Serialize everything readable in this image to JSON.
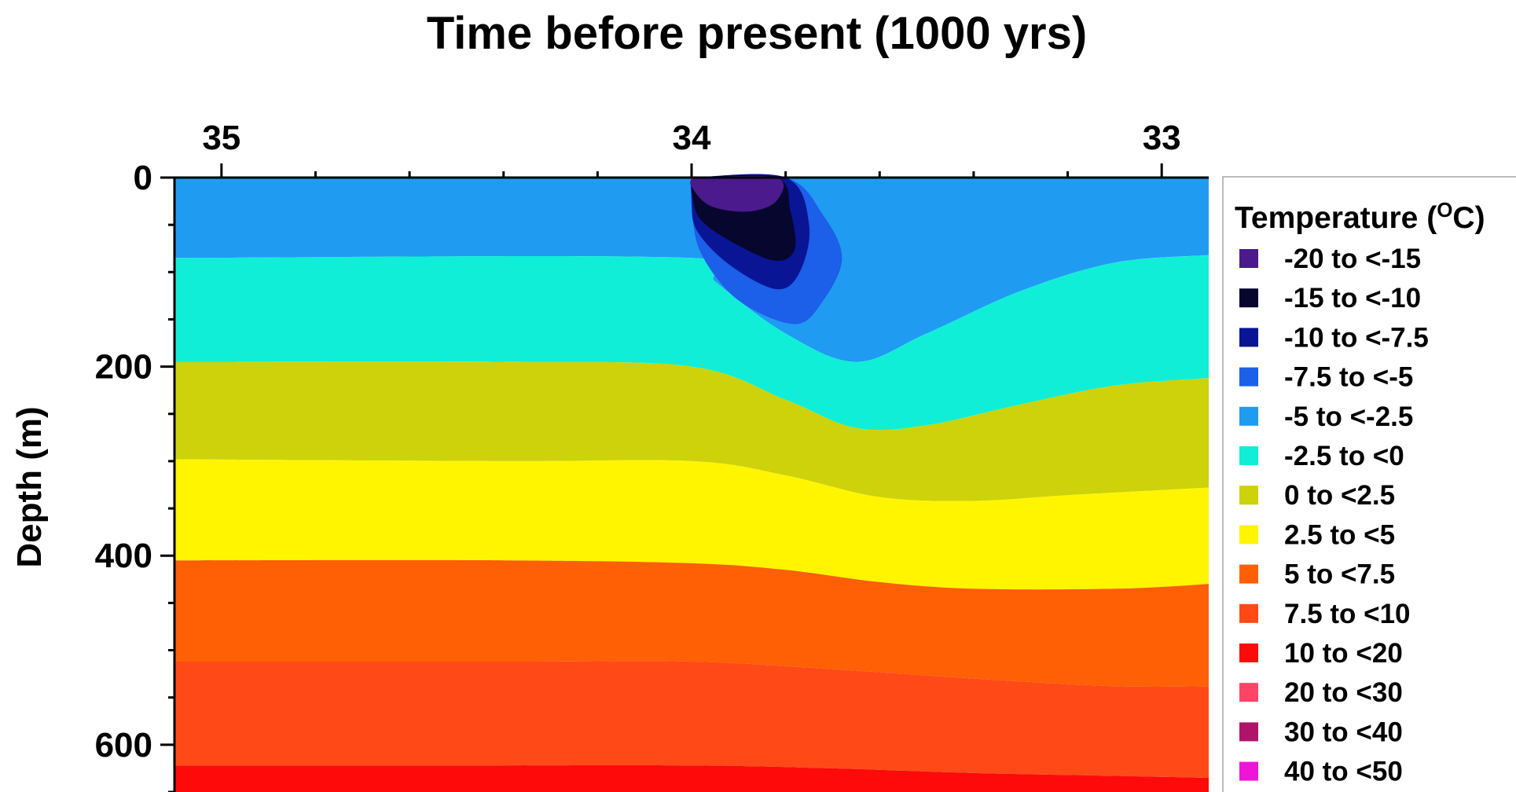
{
  "chart_data": {
    "type": "heatmap",
    "title": "Time before present (1000 yrs)",
    "xlabel": "",
    "ylabel": "Depth (m)",
    "x_ticks": [
      35,
      34,
      33
    ],
    "y_ticks": [
      0,
      200,
      400,
      600
    ],
    "xlim": [
      35.1,
      32.9
    ],
    "ylim": [
      0,
      650
    ],
    "x_axis_position": "top",
    "grid": false,
    "legend": {
      "title": "Temperature (",
      "title_sup": "O",
      "title_end": "C)",
      "placement": "right",
      "items": [
        {
          "label": "-20 to <-15",
          "color": "#4b1a8c"
        },
        {
          "label": "-15 to <-10",
          "color": "#06062e"
        },
        {
          "label": "-10 to <-7.5",
          "color": "#0a1596"
        },
        {
          "label": "-7.5 to <-5",
          "color": "#1c5fe8"
        },
        {
          "label": "-5 to <-2.5",
          "color": "#1f9bf2"
        },
        {
          "label": "-2.5 to <0",
          "color": "#10eed7"
        },
        {
          "label": "0 to <2.5",
          "color": "#cdd20a"
        },
        {
          "label": "2.5 to <5",
          "color": "#fff500"
        },
        {
          "label": "5 to <7.5",
          "color": "#ff5f05"
        },
        {
          "label": "7.5 to <10",
          "color": "#ff4a18"
        },
        {
          "label": "10 to <20",
          "color": "#ff0a0a"
        },
        {
          "label": "20 to <30",
          "color": "#ff4466"
        },
        {
          "label": "30 to <40",
          "color": "#b01468"
        },
        {
          "label": "40 to <50",
          "color": "#f014d8"
        }
      ]
    },
    "layers": [
      {
        "range": "-5 to <-2.5",
        "upper": [
          [
            35.1,
            0
          ],
          [
            32.9,
            0
          ]
        ],
        "lower": [
          [
            35.1,
            85
          ],
          [
            34.0,
            85
          ],
          [
            33.95,
            110
          ],
          [
            33.8,
            165
          ],
          [
            33.65,
            195
          ],
          [
            33.5,
            165
          ],
          [
            33.3,
            120
          ],
          [
            33.1,
            90
          ],
          [
            32.9,
            82
          ]
        ]
      },
      {
        "range": "-2.5 to <0",
        "upper": [
          [
            35.1,
            85
          ],
          [
            34.0,
            85
          ],
          [
            33.95,
            110
          ],
          [
            33.8,
            165
          ],
          [
            33.65,
            195
          ],
          [
            33.5,
            165
          ],
          [
            33.3,
            120
          ],
          [
            33.1,
            90
          ],
          [
            32.9,
            82
          ]
        ],
        "lower": [
          [
            35.1,
            195
          ],
          [
            34.4,
            195
          ],
          [
            34.0,
            200
          ],
          [
            33.8,
            235
          ],
          [
            33.65,
            265
          ],
          [
            33.5,
            262
          ],
          [
            33.3,
            240
          ],
          [
            33.1,
            220
          ],
          [
            32.9,
            212
          ]
        ]
      },
      {
        "range": "0 to <2.5",
        "upper": [
          [
            35.1,
            195
          ],
          [
            34.4,
            195
          ],
          [
            34.0,
            200
          ],
          [
            33.8,
            235
          ],
          [
            33.65,
            265
          ],
          [
            33.5,
            262
          ],
          [
            33.3,
            240
          ],
          [
            33.1,
            220
          ],
          [
            32.9,
            212
          ]
        ],
        "lower": [
          [
            35.1,
            298
          ],
          [
            34.4,
            300
          ],
          [
            34.0,
            300
          ],
          [
            33.8,
            315
          ],
          [
            33.6,
            338
          ],
          [
            33.4,
            342
          ],
          [
            33.2,
            336
          ],
          [
            32.9,
            328
          ]
        ]
      },
      {
        "range": "2.5 to <5",
        "upper": [
          [
            35.1,
            298
          ],
          [
            34.4,
            300
          ],
          [
            34.0,
            300
          ],
          [
            33.8,
            315
          ],
          [
            33.6,
            338
          ],
          [
            33.4,
            342
          ],
          [
            33.2,
            336
          ],
          [
            32.9,
            328
          ]
        ],
        "lower": [
          [
            35.1,
            405
          ],
          [
            34.4,
            405
          ],
          [
            34.0,
            408
          ],
          [
            33.8,
            415
          ],
          [
            33.6,
            428
          ],
          [
            33.4,
            435
          ],
          [
            33.1,
            435
          ],
          [
            32.9,
            430
          ]
        ]
      },
      {
        "range": "5 to <7.5",
        "upper": [
          [
            35.1,
            405
          ],
          [
            34.4,
            405
          ],
          [
            34.0,
            408
          ],
          [
            33.8,
            415
          ],
          [
            33.6,
            428
          ],
          [
            33.4,
            435
          ],
          [
            33.1,
            435
          ],
          [
            32.9,
            430
          ]
        ],
        "lower": [
          [
            35.1,
            512
          ],
          [
            34.4,
            512
          ],
          [
            34.0,
            512
          ],
          [
            33.7,
            520
          ],
          [
            33.4,
            530
          ],
          [
            33.1,
            538
          ],
          [
            32.9,
            538
          ]
        ]
      },
      {
        "range": "7.5 to <10",
        "upper": [
          [
            35.1,
            512
          ],
          [
            34.4,
            512
          ],
          [
            34.0,
            512
          ],
          [
            33.7,
            520
          ],
          [
            33.4,
            530
          ],
          [
            33.1,
            538
          ],
          [
            32.9,
            538
          ]
        ],
        "lower": [
          [
            35.1,
            622
          ],
          [
            34.5,
            622
          ],
          [
            34.0,
            622
          ],
          [
            33.7,
            625
          ],
          [
            33.4,
            630
          ],
          [
            33.1,
            633
          ],
          [
            32.9,
            635
          ]
        ]
      },
      {
        "range": "10 to <20",
        "upper": [
          [
            35.1,
            622
          ],
          [
            34.5,
            622
          ],
          [
            34.0,
            622
          ],
          [
            33.7,
            625
          ],
          [
            33.4,
            630
          ],
          [
            33.1,
            633
          ],
          [
            32.9,
            635
          ]
        ],
        "lower": [
          [
            35.1,
            650
          ],
          [
            32.9,
            650
          ]
        ]
      }
    ],
    "anomaly": [
      {
        "range": "-7.5 to <-5",
        "outline": [
          [
            34.0,
            0
          ],
          [
            33.8,
            0
          ],
          [
            33.72,
            40
          ],
          [
            33.68,
            85
          ],
          [
            33.72,
            130
          ],
          [
            33.78,
            155
          ],
          [
            33.9,
            130
          ],
          [
            33.98,
            80
          ],
          [
            34.0,
            30
          ]
        ]
      },
      {
        "range": "-10 to <-7.5",
        "outline": [
          [
            34.0,
            0
          ],
          [
            33.8,
            0
          ],
          [
            33.75,
            50
          ],
          [
            33.77,
            100
          ],
          [
            33.82,
            118
          ],
          [
            33.92,
            92
          ],
          [
            33.99,
            55
          ],
          [
            34.0,
            20
          ]
        ]
      },
      {
        "range": "-15 to <-10",
        "outline": [
          [
            34.0,
            0
          ],
          [
            33.82,
            0
          ],
          [
            33.79,
            35
          ],
          [
            33.78,
            75
          ],
          [
            33.82,
            88
          ],
          [
            33.9,
            72
          ],
          [
            33.98,
            45
          ],
          [
            34.0,
            15
          ]
        ]
      },
      {
        "range": "-20 to <-15",
        "outline": [
          [
            34.0,
            0
          ],
          [
            33.82,
            0
          ],
          [
            33.82,
            25
          ],
          [
            33.88,
            36
          ],
          [
            33.96,
            30
          ],
          [
            34.0,
            10
          ]
        ]
      }
    ]
  }
}
